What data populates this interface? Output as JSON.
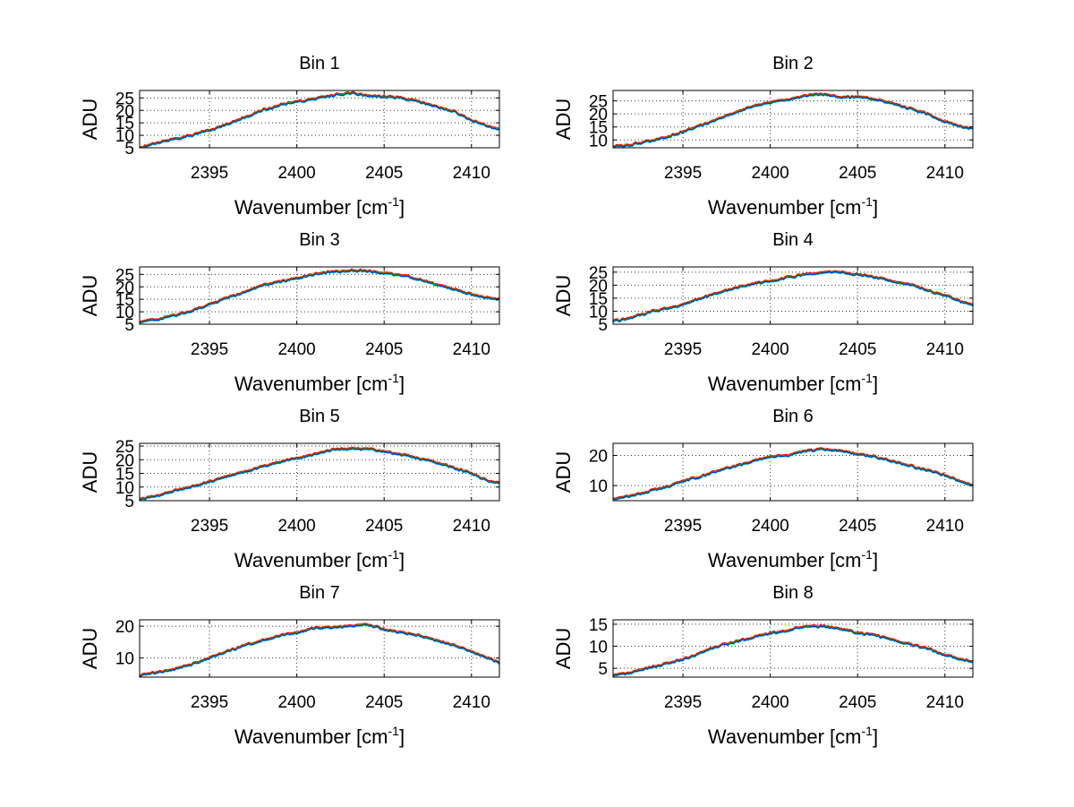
{
  "figure": {
    "background": "#ffffff"
  },
  "chart_data": [
    {
      "type": "line",
      "title": "Bin 1",
      "xlabel": "Wavenumber [cm-1]",
      "xlabel_main": "Wavenumber [cm",
      "xlabel_sup": "-1",
      "xlabel_close": "]",
      "ylabel": "ADU",
      "xlim": [
        2391,
        2411.6
      ],
      "ylim": [
        5,
        28
      ],
      "xticks": [
        2395,
        2400,
        2405,
        2410
      ],
      "yticks": [
        5,
        10,
        15,
        20,
        25
      ],
      "xtick_labels": [
        "2395",
        "2400",
        "2405",
        "2410"
      ],
      "ytick_labels": [
        "5",
        "10",
        "15",
        "20",
        "25"
      ],
      "grid": true,
      "series_colors": [
        "#00bfbf",
        "#0000ff",
        "#00b000",
        "#ff0000"
      ],
      "profile_x": [
        2391,
        2392,
        2393,
        2394,
        2395,
        2396,
        2397,
        2398,
        2399,
        2400,
        2401,
        2402,
        2403,
        2404,
        2405,
        2406,
        2407,
        2408,
        2409,
        2410,
        2411,
        2411.6
      ],
      "profile_y": [
        5,
        7,
        8.5,
        10,
        12,
        14.5,
        17,
        20,
        22,
        23.5,
        24.5,
        26,
        27,
        26,
        25.5,
        25,
        23.5,
        21.5,
        19.5,
        16,
        13.5,
        12.5
      ]
    },
    {
      "type": "line",
      "title": "Bin 2",
      "xlabel": "Wavenumber [cm-1]",
      "xlabel_main": "Wavenumber [cm",
      "xlabel_sup": "-1",
      "xlabel_close": "]",
      "ylabel": "ADU",
      "xlim": [
        2391,
        2411.6
      ],
      "ylim": [
        7,
        29
      ],
      "xticks": [
        2395,
        2400,
        2405,
        2410
      ],
      "yticks": [
        10,
        15,
        20,
        25
      ],
      "xtick_labels": [
        "2395",
        "2400",
        "2405",
        "2410"
      ],
      "ytick_labels": [
        "10",
        "15",
        "20",
        "25"
      ],
      "grid": true,
      "series_colors": [
        "#00bfbf",
        "#0000ff",
        "#00b000",
        "#ff0000"
      ],
      "profile_x": [
        2391,
        2392,
        2393,
        2394,
        2395,
        2396,
        2397,
        2398,
        2399,
        2400,
        2401,
        2402,
        2403,
        2404,
        2405,
        2406,
        2407,
        2408,
        2409,
        2410,
        2411,
        2411.6
      ],
      "profile_y": [
        7.5,
        8,
        9.5,
        11,
        13,
        15.5,
        18,
        20.5,
        23,
        24.5,
        25.5,
        27,
        27.5,
        26.5,
        26.5,
        25.5,
        24,
        22,
        20,
        17,
        15,
        14.5
      ]
    },
    {
      "type": "line",
      "title": "Bin 3",
      "xlabel": "Wavenumber [cm-1]",
      "xlabel_main": "Wavenumber [cm",
      "xlabel_sup": "-1",
      "xlabel_close": "]",
      "ylabel": "ADU",
      "xlim": [
        2391,
        2411.6
      ],
      "ylim": [
        5,
        28
      ],
      "xticks": [
        2395,
        2400,
        2405,
        2410
      ],
      "yticks": [
        5,
        10,
        15,
        20,
        25
      ],
      "xtick_labels": [
        "2395",
        "2400",
        "2405",
        "2410"
      ],
      "ytick_labels": [
        "5",
        "10",
        "15",
        "20",
        "25"
      ],
      "grid": true,
      "series_colors": [
        "#00bfbf",
        "#0000ff",
        "#00b000",
        "#ff0000"
      ],
      "profile_x": [
        2391,
        2392,
        2393,
        2394,
        2395,
        2396,
        2397,
        2398,
        2399,
        2400,
        2401,
        2402,
        2403,
        2404,
        2405,
        2406,
        2407,
        2408,
        2409,
        2410,
        2411,
        2411.6
      ],
      "profile_y": [
        6,
        7,
        8.5,
        10.5,
        13,
        15.5,
        18,
        20.5,
        22,
        23.5,
        25,
        26,
        26.5,
        26.5,
        25.5,
        24.5,
        23,
        21,
        19,
        17,
        15.5,
        15
      ]
    },
    {
      "type": "line",
      "title": "Bin 4",
      "xlabel": "Wavenumber [cm-1]",
      "xlabel_main": "Wavenumber [cm",
      "xlabel_sup": "-1",
      "xlabel_close": "]",
      "ylabel": "ADU",
      "xlim": [
        2391,
        2411.6
      ],
      "ylim": [
        5,
        27
      ],
      "xticks": [
        2395,
        2400,
        2405,
        2410
      ],
      "yticks": [
        5,
        10,
        15,
        20,
        25
      ],
      "xtick_labels": [
        "2395",
        "2400",
        "2405",
        "2410"
      ],
      "ytick_labels": [
        "5",
        "10",
        "15",
        "20",
        "25"
      ],
      "grid": true,
      "series_colors": [
        "#00bfbf",
        "#0000ff",
        "#00b000",
        "#ff0000"
      ],
      "profile_x": [
        2391,
        2392,
        2393,
        2394,
        2395,
        2396,
        2397,
        2398,
        2399,
        2400,
        2401,
        2402,
        2403,
        2404,
        2405,
        2406,
        2407,
        2408,
        2409,
        2410,
        2411,
        2411.6
      ],
      "profile_y": [
        6,
        7.5,
        9.5,
        11,
        12.5,
        15,
        17,
        19,
        20.5,
        21.5,
        23,
        24,
        25,
        25,
        24,
        23,
        21.5,
        20,
        18,
        16,
        13.5,
        12.5
      ]
    },
    {
      "type": "line",
      "title": "Bin 5",
      "xlabel": "Wavenumber [cm-1]",
      "xlabel_main": "Wavenumber [cm",
      "xlabel_sup": "-1",
      "xlabel_close": "]",
      "ylabel": "ADU",
      "xlim": [
        2391,
        2411.6
      ],
      "ylim": [
        5,
        26
      ],
      "xticks": [
        2395,
        2400,
        2405,
        2410
      ],
      "yticks": [
        5,
        10,
        15,
        20,
        25
      ],
      "xtick_labels": [
        "2395",
        "2400",
        "2405",
        "2410"
      ],
      "ytick_labels": [
        "5",
        "10",
        "15",
        "20",
        "25"
      ],
      "grid": true,
      "series_colors": [
        "#00bfbf",
        "#0000ff",
        "#00b000",
        "#ff0000"
      ],
      "profile_x": [
        2391,
        2392,
        2393,
        2394,
        2395,
        2396,
        2397,
        2398,
        2399,
        2400,
        2401,
        2402,
        2403,
        2404,
        2405,
        2406,
        2407,
        2408,
        2409,
        2410,
        2411,
        2411.6
      ],
      "profile_y": [
        5.5,
        7,
        8.5,
        10,
        12,
        14,
        15.5,
        17.5,
        19,
        20.5,
        22,
        23.5,
        24,
        24,
        23,
        22,
        20.5,
        19,
        17,
        15,
        12,
        11.5
      ]
    },
    {
      "type": "line",
      "title": "Bin 6",
      "xlabel": "Wavenumber [cm-1]",
      "xlabel_main": "Wavenumber [cm",
      "xlabel_sup": "-1",
      "xlabel_close": "]",
      "ylabel": "ADU",
      "xlim": [
        2391,
        2411.6
      ],
      "ylim": [
        5,
        24
      ],
      "xticks": [
        2395,
        2400,
        2405,
        2410
      ],
      "yticks": [
        10,
        20
      ],
      "xtick_labels": [
        "2395",
        "2400",
        "2405",
        "2410"
      ],
      "ytick_labels": [
        "10",
        "20"
      ],
      "grid": true,
      "series_colors": [
        "#00bfbf",
        "#0000ff",
        "#00b000",
        "#ff0000"
      ],
      "profile_x": [
        2391,
        2392,
        2393,
        2394,
        2395,
        2396,
        2397,
        2398,
        2399,
        2400,
        2401,
        2402,
        2403,
        2404,
        2405,
        2406,
        2407,
        2408,
        2409,
        2410,
        2411,
        2411.6
      ],
      "profile_y": [
        5.5,
        6.5,
        8,
        9.5,
        11.5,
        13,
        15,
        16.5,
        18,
        19.5,
        20,
        21.5,
        22,
        21.5,
        20.5,
        19.5,
        18,
        16.5,
        15,
        13.5,
        11,
        10
      ]
    },
    {
      "type": "line",
      "title": "Bin 7",
      "xlabel": "Wavenumber [cm-1]",
      "xlabel_main": "Wavenumber [cm",
      "xlabel_sup": "-1",
      "xlabel_close": "]",
      "ylabel": "ADU",
      "xlim": [
        2391,
        2411.6
      ],
      "ylim": [
        4,
        22
      ],
      "xticks": [
        2395,
        2400,
        2405,
        2410
      ],
      "yticks": [
        10,
        20
      ],
      "xtick_labels": [
        "2395",
        "2400",
        "2405",
        "2410"
      ],
      "ytick_labels": [
        "10",
        "20"
      ],
      "grid": true,
      "series_colors": [
        "#00bfbf",
        "#0000ff",
        "#00b000",
        "#ff0000"
      ],
      "profile_x": [
        2391,
        2392,
        2393,
        2394,
        2395,
        2396,
        2397,
        2398,
        2399,
        2400,
        2401,
        2402,
        2403,
        2404,
        2405,
        2406,
        2407,
        2408,
        2409,
        2410,
        2411,
        2411.6
      ],
      "profile_y": [
        4.5,
        5.5,
        6.5,
        8,
        10,
        12,
        14,
        15.5,
        17,
        18,
        19.5,
        19.5,
        20,
        20.5,
        19,
        18,
        17,
        15.5,
        14,
        12,
        10,
        8.5
      ]
    },
    {
      "type": "line",
      "title": "Bin 8",
      "xlabel": "Wavenumber [cm-1]",
      "xlabel_main": "Wavenumber [cm",
      "xlabel_sup": "-1",
      "xlabel_close": "]",
      "ylabel": "ADU",
      "xlim": [
        2391,
        2411.6
      ],
      "ylim": [
        3,
        16
      ],
      "xticks": [
        2395,
        2400,
        2405,
        2410
      ],
      "yticks": [
        5,
        10,
        15
      ],
      "xtick_labels": [
        "2395",
        "2400",
        "2405",
        "2410"
      ],
      "ytick_labels": [
        "5",
        "10",
        "15"
      ],
      "grid": true,
      "series_colors": [
        "#00bfbf",
        "#0000ff",
        "#00b000",
        "#ff0000"
      ],
      "profile_x": [
        2391,
        2392,
        2393,
        2394,
        2395,
        2396,
        2397,
        2398,
        2399,
        2400,
        2401,
        2402,
        2403,
        2404,
        2405,
        2406,
        2407,
        2408,
        2409,
        2410,
        2411,
        2411.6
      ],
      "profile_y": [
        3.5,
        4,
        5,
        6,
        7,
        8.5,
        10,
        11,
        12,
        13,
        13.5,
        14.5,
        14.5,
        14,
        13,
        12.5,
        11.5,
        10.5,
        9.5,
        8,
        7,
        6.5
      ]
    }
  ]
}
